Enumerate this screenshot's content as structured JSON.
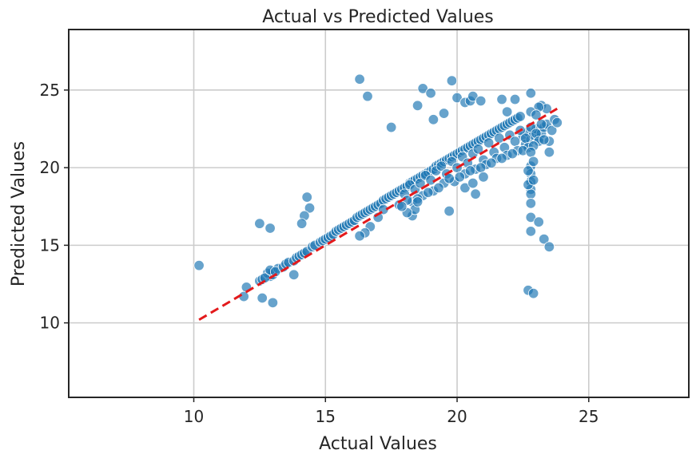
{
  "chart_data": {
    "type": "scatter",
    "title": "Actual vs Predicted Values",
    "xlabel": "Actual Values",
    "ylabel": "Predicted Values",
    "xlim": [
      5.25,
      28.8
    ],
    "ylim": [
      5.2,
      28.9
    ],
    "xticks": [
      10,
      15,
      20,
      25
    ],
    "yticks": [
      10,
      15,
      20,
      25
    ],
    "grid": true,
    "legend": "none",
    "colors": {
      "points": "#1f77b4",
      "point_edge": "#ffffff",
      "reference_line": "#e31a1c",
      "grid": "#cccccc",
      "axes": "#262626"
    },
    "series": [
      {
        "kind": "points",
        "x": [
          10.2,
          12.0,
          11.9,
          12.5,
          12.6,
          12.9,
          13.0,
          13.0,
          12.8,
          12.7,
          12.9,
          13.2,
          13.1,
          13.4,
          13.5,
          13.6,
          13.8,
          13.9,
          14.0,
          14.1,
          14.2,
          14.3,
          14.5,
          14.6,
          14.8,
          14.9,
          15.0,
          15.1,
          15.2,
          15.3,
          15.4,
          15.5,
          15.6,
          15.7,
          15.8,
          15.9,
          16.0,
          16.1,
          16.2,
          16.3,
          16.4,
          16.5,
          16.6,
          16.7,
          16.8,
          16.9,
          17.0,
          17.1,
          17.2,
          17.3,
          17.4,
          17.5,
          17.6,
          17.7,
          17.8,
          17.9,
          18.0,
          18.1,
          18.2,
          18.3,
          18.4,
          18.5,
          18.6,
          18.7,
          18.8,
          18.9,
          19.0,
          19.1,
          19.2,
          19.3,
          19.4,
          19.5,
          19.6,
          19.7,
          19.8,
          19.9,
          20.0,
          20.1,
          20.2,
          20.3,
          20.4,
          20.5,
          20.6,
          20.7,
          20.8,
          20.9,
          21.0,
          21.1,
          21.2,
          21.3,
          21.4,
          21.5,
          21.6,
          21.7,
          21.8,
          21.9,
          22.0,
          22.1,
          22.2,
          22.3,
          22.4,
          22.5,
          22.6,
          22.7,
          22.8,
          22.9,
          23.0,
          23.1,
          23.2,
          23.3,
          23.4,
          23.5,
          23.6,
          23.7,
          23.8,
          18.0,
          18.2,
          18.4,
          18.6,
          18.8,
          19.0,
          19.2,
          19.4,
          19.6,
          19.8,
          20.0,
          20.2,
          20.4,
          20.6,
          20.8,
          21.0,
          21.2,
          21.4,
          21.6,
          21.8,
          22.0,
          22.2,
          22.4,
          22.6,
          22.8,
          23.0,
          23.2,
          18.3,
          18.7,
          19.1,
          19.5,
          19.9,
          20.3,
          20.7,
          21.1,
          21.5,
          21.9,
          22.3,
          22.7,
          23.1,
          23.5,
          17.8,
          18.1,
          18.5,
          18.9,
          19.3,
          19.7,
          20.1,
          20.5,
          20.9,
          21.3,
          21.7,
          22.1,
          22.5,
          22.9,
          23.3,
          22.8,
          22.8,
          22.8,
          22.8,
          22.8,
          22.8,
          22.8,
          22.8,
          22.8,
          22.7,
          22.7,
          22.9,
          22.9,
          19.7,
          20.3,
          20.6,
          20.7,
          21.0,
          18.3,
          18.4,
          18.5,
          18.1,
          17.9,
          17.2,
          17.0,
          16.7,
          16.5,
          16.3,
          14.3,
          14.4,
          14.2,
          14.1,
          13.8,
          12.5,
          12.9,
          12.6,
          13.0,
          16.3,
          16.6,
          17.5,
          18.5,
          18.7,
          19.0,
          19.1,
          19.5,
          19.8,
          20.0,
          20.3,
          20.5,
          20.6,
          20.9,
          21.7,
          21.9,
          22.2,
          22.8,
          23.2,
          23.4,
          22.7,
          22.9,
          23.1,
          23.3,
          23.5,
          23.1,
          22.8,
          23.0
        ],
        "y": [
          13.7,
          12.3,
          11.7,
          12.7,
          12.8,
          13.0,
          13.1,
          13.3,
          13.2,
          12.9,
          13.4,
          13.5,
          13.3,
          13.6,
          13.8,
          13.9,
          14.0,
          14.2,
          14.3,
          14.4,
          14.5,
          14.6,
          14.9,
          15.0,
          15.2,
          15.3,
          15.4,
          15.5,
          15.6,
          15.7,
          15.9,
          16.0,
          16.1,
          16.2,
          16.3,
          16.4,
          16.5,
          16.6,
          16.8,
          16.9,
          17.0,
          17.1,
          17.2,
          17.3,
          17.4,
          17.5,
          17.6,
          17.7,
          17.9,
          18.0,
          18.1,
          18.2,
          18.3,
          18.4,
          18.5,
          18.6,
          18.7,
          18.8,
          19.0,
          19.1,
          19.2,
          19.3,
          19.4,
          19.5,
          19.6,
          19.7,
          19.8,
          19.9,
          20.1,
          20.2,
          20.3,
          20.4,
          20.5,
          20.6,
          20.7,
          20.8,
          20.9,
          21.0,
          21.1,
          21.2,
          21.3,
          21.4,
          21.5,
          21.6,
          21.7,
          21.8,
          21.9,
          22.0,
          22.1,
          22.2,
          22.3,
          22.4,
          22.5,
          22.6,
          22.7,
          22.8,
          22.9,
          23.0,
          23.1,
          23.2,
          23.3,
          22.0,
          21.5,
          22.3,
          21.8,
          22.1,
          22.5,
          21.9,
          22.2,
          22.6,
          22.8,
          21.7,
          22.4,
          23.1,
          22.9,
          18.3,
          18.9,
          18.6,
          19.0,
          19.5,
          19.2,
          19.8,
          20.1,
          19.6,
          20.4,
          20.0,
          20.7,
          20.3,
          20.9,
          21.2,
          20.5,
          21.6,
          21.0,
          21.9,
          21.3,
          22.1,
          21.7,
          22.4,
          21.9,
          22.6,
          22.2,
          22.8,
          17.8,
          18.2,
          18.5,
          19.0,
          19.1,
          19.6,
          19.9,
          20.2,
          20.6,
          20.8,
          21.1,
          21.3,
          21.7,
          21.0,
          17.6,
          17.9,
          18.0,
          18.4,
          18.7,
          19.3,
          19.4,
          19.8,
          20.0,
          20.3,
          20.6,
          20.9,
          21.1,
          21.4,
          21.8,
          20.1,
          19.6,
          19.1,
          18.6,
          18.3,
          17.7,
          16.8,
          15.9,
          21.0,
          19.8,
          18.9,
          20.4,
          19.2,
          17.2,
          18.7,
          19.0,
          18.3,
          19.4,
          16.9,
          17.3,
          17.8,
          17.1,
          17.5,
          17.3,
          16.8,
          16.2,
          15.8,
          15.6,
          18.1,
          17.4,
          16.9,
          16.4,
          13.1,
          16.4,
          16.1,
          11.6,
          11.3,
          25.7,
          24.6,
          22.6,
          24.0,
          25.1,
          24.8,
          23.1,
          23.5,
          25.6,
          24.5,
          24.2,
          24.3,
          24.6,
          24.3,
          24.4,
          23.6,
          24.4,
          24.8,
          24.0,
          23.8,
          12.1,
          11.9,
          16.5,
          15.4,
          14.9,
          23.9,
          23.6,
          23.4
        ]
      }
    ],
    "reference_line": {
      "x": [
        10.2,
        23.8
      ],
      "y": [
        10.2,
        23.8
      ],
      "style": "dashed"
    }
  }
}
